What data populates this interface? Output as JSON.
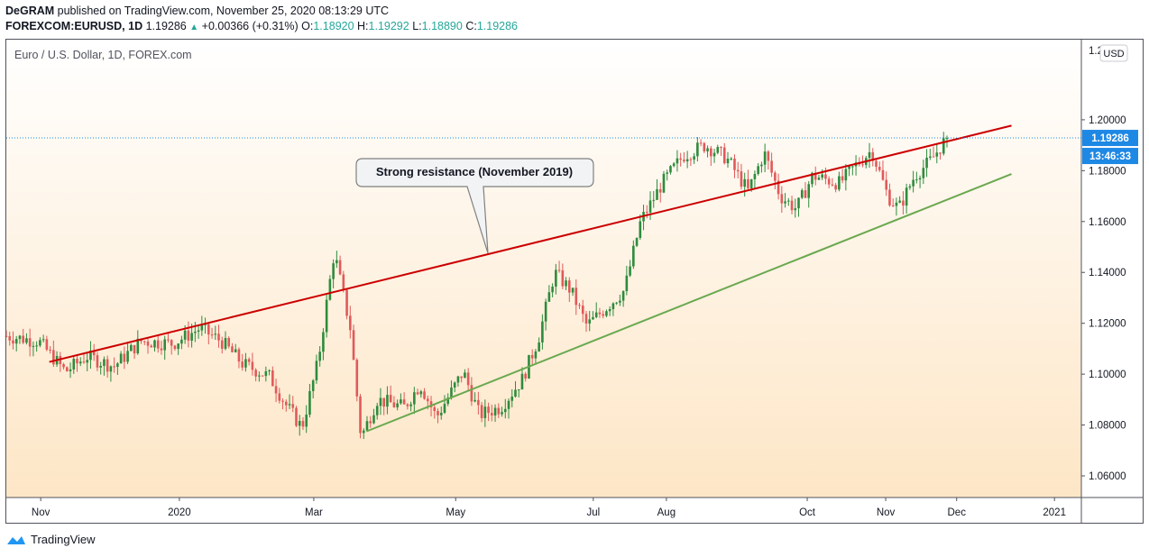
{
  "header": {
    "author": "DeGRAM",
    "published_text": "published on TradingView.com, November 25, 2020 08:13:29 UTC",
    "symbol": "FOREXCOM:EURUSD, 1D",
    "last": "1.19286",
    "change": "+0.00366 (+0.31%)",
    "o_label": "O:",
    "o_val": "1.18920",
    "h_label": "H:",
    "h_val": "1.19292",
    "l_label": "L:",
    "l_val": "1.18890",
    "c_label": "C:",
    "c_val": "1.19286"
  },
  "chart_data": {
    "type": "candlestick",
    "title": "Euro / U.S. Dollar, 1D, FOREX.com",
    "currency_label": "USD",
    "y_ticks": [
      "1.06000",
      "1.08000",
      "1.10000",
      "1.12000",
      "1.14000",
      "1.16000",
      "1.18000",
      "1.20000"
    ],
    "y_top_label": "1.2",
    "ylim": [
      1.0515,
      1.2315
    ],
    "x_ticks": [
      "Nov",
      "2020",
      "Mar",
      "May",
      "Jul",
      "Aug",
      "Oct",
      "Nov",
      "Dec",
      "2021"
    ],
    "last_price_label": "1.19286",
    "countdown_label": "13:46:33",
    "last_price": 1.19286,
    "annotation": "Strong resistance (November 2019)",
    "colors": {
      "up": "#2e8b3d",
      "down": "#e05a5a",
      "resistance": "#cc0000",
      "support": "#6aa84f",
      "price_tag": "#1e88e5"
    },
    "resistance_line": [
      {
        "x": 0.04,
        "y": 1.1048
      },
      {
        "x": 0.935,
        "y": 1.1977
      }
    ],
    "support_line": [
      {
        "x": 0.335,
        "y": 1.0775
      },
      {
        "x": 0.935,
        "y": 1.1787
      }
    ],
    "candles_path": [
      [
        0.0,
        1.115
      ],
      [
        0.03,
        1.113
      ],
      [
        0.055,
        1.101
      ],
      [
        0.075,
        1.107
      ],
      [
        0.1,
        1.103
      ],
      [
        0.125,
        1.113
      ],
      [
        0.155,
        1.112
      ],
      [
        0.18,
        1.118
      ],
      [
        0.2,
        1.113
      ],
      [
        0.22,
        1.104
      ],
      [
        0.245,
        1.099
      ],
      [
        0.26,
        1.088
      ],
      [
        0.275,
        1.079
      ],
      [
        0.29,
        1.105
      ],
      [
        0.305,
        1.148
      ],
      [
        0.32,
        1.118
      ],
      [
        0.33,
        1.075
      ],
      [
        0.345,
        1.09
      ],
      [
        0.37,
        1.087
      ],
      [
        0.385,
        1.096
      ],
      [
        0.4,
        1.083
      ],
      [
        0.425,
        1.101
      ],
      [
        0.44,
        1.084
      ],
      [
        0.46,
        1.087
      ],
      [
        0.48,
        1.098
      ],
      [
        0.495,
        1.114
      ],
      [
        0.51,
        1.14
      ],
      [
        0.525,
        1.133
      ],
      [
        0.54,
        1.119
      ],
      [
        0.56,
        1.127
      ],
      [
        0.575,
        1.133
      ],
      [
        0.59,
        1.16
      ],
      [
        0.61,
        1.175
      ],
      [
        0.63,
        1.186
      ],
      [
        0.65,
        1.19
      ],
      [
        0.67,
        1.185
      ],
      [
        0.69,
        1.172
      ],
      [
        0.705,
        1.187
      ],
      [
        0.72,
        1.17
      ],
      [
        0.735,
        1.165
      ],
      [
        0.75,
        1.178
      ],
      [
        0.775,
        1.175
      ],
      [
        0.79,
        1.182
      ],
      [
        0.805,
        1.188
      ],
      [
        0.82,
        1.17
      ],
      [
        0.83,
        1.165
      ],
      [
        0.845,
        1.178
      ],
      [
        0.86,
        1.184
      ],
      [
        0.875,
        1.193
      ]
    ]
  }
}
